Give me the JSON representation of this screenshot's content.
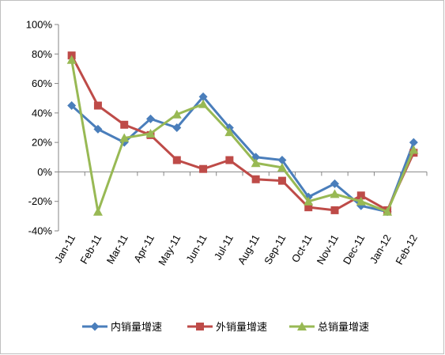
{
  "chart_data": {
    "type": "line",
    "categories": [
      "Jan-11",
      "Feb-11",
      "Mar-11",
      "Apr-11",
      "May-11",
      "Jun-11",
      "Jul-11",
      "Aug-11",
      "Sep-11",
      "Oct-11",
      "Nov-11",
      "Dec-11",
      "Jan-12",
      "Feb-12"
    ],
    "y_tick_labels": [
      "-40%",
      "-20%",
      "0%",
      "20%",
      "40%",
      "60%",
      "80%",
      "100%"
    ],
    "ylim": [
      -40,
      100
    ],
    "grid": false,
    "legend_position": "bottom",
    "series": [
      {
        "name": "内销量增速",
        "color": "#4A7EBB",
        "marker": "diamond",
        "values": [
          45,
          29,
          20,
          36,
          30,
          51,
          30,
          10,
          8,
          -17,
          -8,
          -23,
          -27,
          20
        ]
      },
      {
        "name": "外销量增速",
        "color": "#BE4B48",
        "marker": "square",
        "values": [
          79,
          45,
          32,
          25,
          8,
          2,
          8,
          -5,
          -6,
          -24,
          -26,
          -16,
          -26,
          13
        ]
      },
      {
        "name": "总销量增速",
        "color": "#98B954",
        "marker": "triangle",
        "values": [
          76,
          -27,
          23,
          26,
          39,
          46,
          27,
          6,
          3,
          -20,
          -15,
          -20,
          -27,
          15
        ]
      }
    ]
  }
}
